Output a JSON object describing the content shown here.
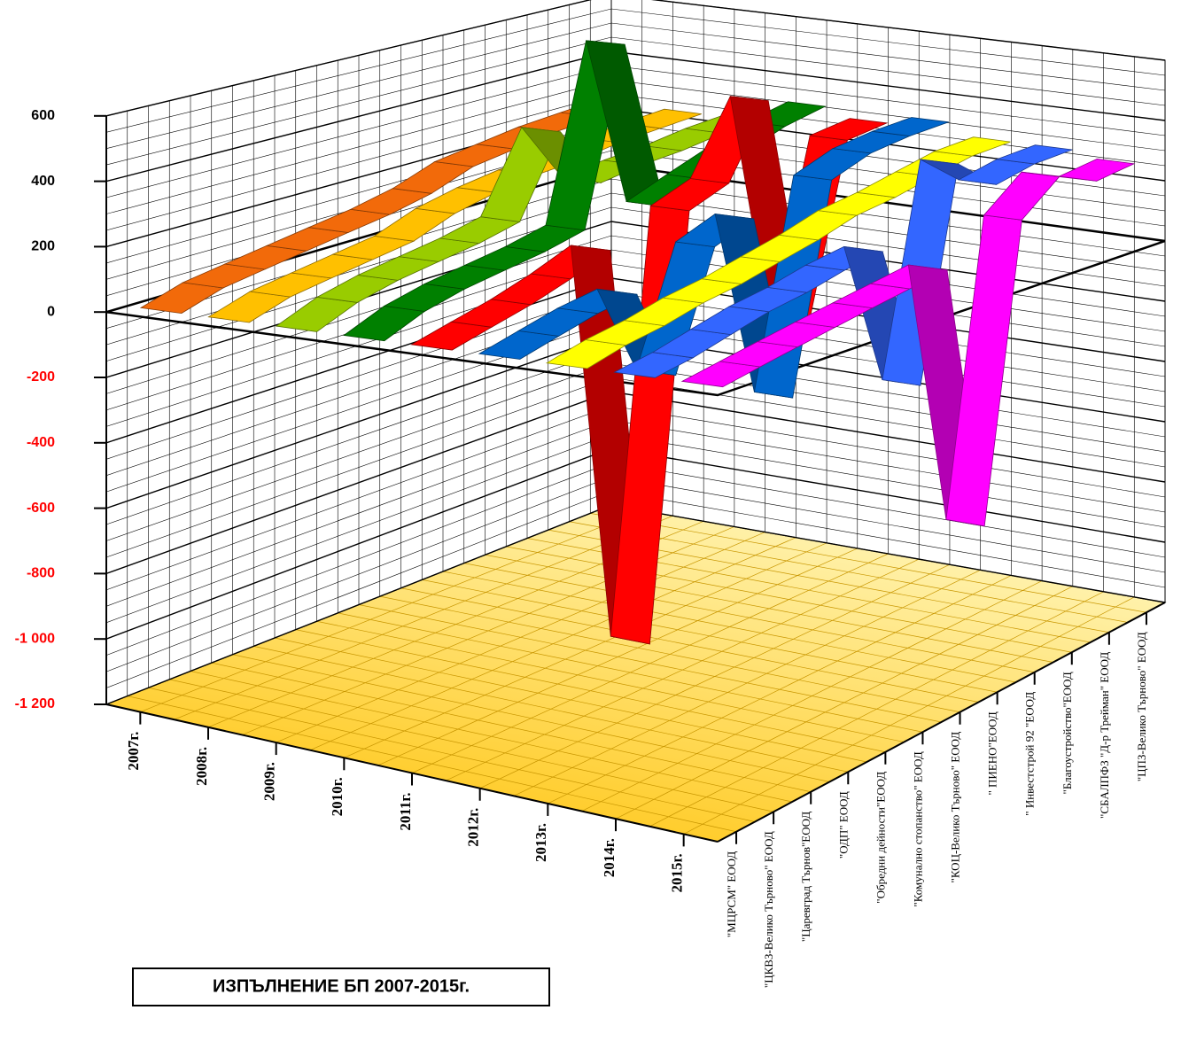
{
  "chart_data": {
    "type": "ribbon3d",
    "title": "ИЗПЪЛНЕНИЕ БП 2007-2015г.",
    "categories": [
      "\"МЦРСМ\" ЕООД",
      "\"ЦКВЗ-Велико Търново\" ЕООД",
      "\"Царевград Търнов\"ЕООД",
      "\"ОДП\" ЕООД",
      "\"Обредни дейности\"ЕООД",
      "\"Комунално стопанство\" ЕООД",
      "\"КОЦ-Велико Търново\" ЕООД",
      "\" ПИЕНО\"ЕООД",
      "\" Инвестстрой 92 \"ЕООД",
      "\"Благоустройство\"ЕООД",
      "\"СБАЛПФЗ \"Д-р Трейман\" ЕООД",
      "\"ЦПЗ-Велико Търново\" ЕООД"
    ],
    "series": [
      {
        "name": "2007г.",
        "color": "#f26a0a",
        "values": [
          0,
          40,
          60,
          80,
          100,
          120,
          150,
          200,
          220,
          240,
          250,
          260
        ]
      },
      {
        "name": "2008г.",
        "color": "#ffc000",
        "values": [
          0,
          40,
          60,
          80,
          100,
          150,
          180,
          200,
          210,
          230,
          240,
          250
        ]
      },
      {
        "name": "2009г.",
        "color": "#99cc00",
        "values": [
          0,
          50,
          80,
          100,
          120,
          150,
          400,
          200,
          220,
          230,
          250,
          260
        ]
      },
      {
        "name": "2010г.",
        "color": "#008000",
        "values": [
          0,
          50,
          80,
          100,
          120,
          150,
          700,
          150,
          200,
          250,
          300,
          330
        ]
      },
      {
        "name": "2011г.",
        "color": "#ff0000",
        "values": [
          0,
          30,
          60,
          100,
          150,
          -1100,
          200,
          250,
          480,
          -300,
          280,
          300
        ]
      },
      {
        "name": "2012г.",
        "color": "#0066cc",
        "values": [
          0,
          30,
          60,
          80,
          -200,
          150,
          200,
          -400,
          250,
          300,
          320,
          330
        ]
      },
      {
        "name": "2013г.",
        "color": "#ffff00",
        "values": [
          0,
          30,
          50,
          80,
          100,
          130,
          160,
          200,
          220,
          250,
          280,
          290
        ]
      },
      {
        "name": "2014г.",
        "color": "#3366ff",
        "values": [
          0,
          20,
          50,
          80,
          100,
          130,
          150,
          -300,
          350,
          250,
          280,
          290
        ]
      },
      {
        "name": "2015г.",
        "color": "#ff00ff",
        "values": [
          0,
          20,
          40,
          60,
          80,
          100,
          120,
          -700,
          200,
          300,
          250,
          270
        ]
      }
    ],
    "ylim": [
      -1200,
      600
    ],
    "yticks": [
      600,
      400,
      200,
      0,
      -200,
      -400,
      -600,
      -800,
      {
        "value": -1000,
        "label": "-1 000"
      },
      {
        "value": -1200,
        "label": "-1 200"
      }
    ],
    "negative_tick_color": "#ff0000",
    "grid": true,
    "floor_color": "#ffd24a"
  }
}
